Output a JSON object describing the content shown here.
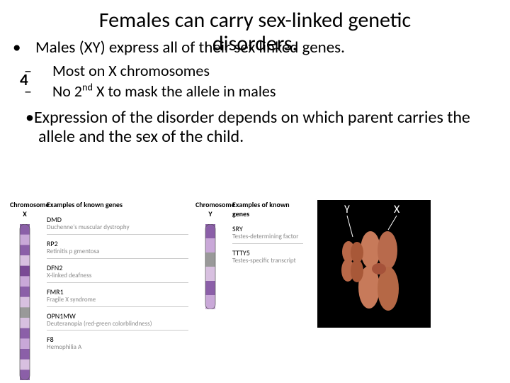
{
  "title_line1": "Females can carry sex-linked genetic",
  "title_line2": "disorders.",
  "bullet1": "Males (XY) express all of their sex linked genes.",
  "page_number": "4",
  "sub1": "Most on X chromosomes",
  "sub2_pre": "No 2",
  "sub2_sup": "nd",
  "sub2_post": " X to mask the allele in males",
  "bullet2": "Expression of the disorder depends on which parent carries the allele and the sex of the child.",
  "fig": {
    "hdr_chromX": "Chromosome X",
    "hdr_genesX": "Examples of known genes",
    "hdr_chromY": "Chromosome Y",
    "hdr_genesY": "Examples of known genes",
    "genesX": [
      {
        "sym": "DMD",
        "desc": "Duchenne's muscular dystrophy"
      },
      {
        "sym": "RP2",
        "desc": "Retinitis p gmentosa"
      },
      {
        "sym": "DFN2",
        "desc": "X-linked deafness"
      },
      {
        "sym": "FMR1",
        "desc": "Fragile X syndrome"
      },
      {
        "sym": "OPN1MW",
        "desc": "Deuteranopia (red-green colorblindness)"
      },
      {
        "sym": "F8",
        "desc": "Hemophilia A"
      }
    ],
    "genesY": [
      {
        "sym": "SRY",
        "desc": "Testes-determining factor"
      },
      {
        "sym": "TTTY5",
        "desc": "Testes-specific transcript"
      }
    ],
    "photo_Y": "Y",
    "photo_X": "X"
  },
  "style": {
    "bg": "#ffffff",
    "text": "#000000",
    "gene_desc_color": "#888888",
    "divider": "#cccccc",
    "photo_bg": "#000000",
    "chromX_bands": [
      "#8b5fa8",
      "#c9a8d8",
      "#8b5fa8",
      "#d8c0e0",
      "#7a4a95",
      "#c9a8d8",
      "#8b5fa8",
      "#d8c0e0",
      "#999",
      "#d8c0e0",
      "#8b5fa8",
      "#c9a8d8",
      "#8b5fa8",
      "#d8c0e0",
      "#8b5fa8"
    ],
    "chromY_bands": [
      "#8b5fa8",
      "#c9a8d8",
      "#999",
      "#d8c0e0",
      "#8b5fa8",
      "#c9a8d8"
    ],
    "x_blob": "#c77a5a",
    "y_blob": "#b86848"
  }
}
